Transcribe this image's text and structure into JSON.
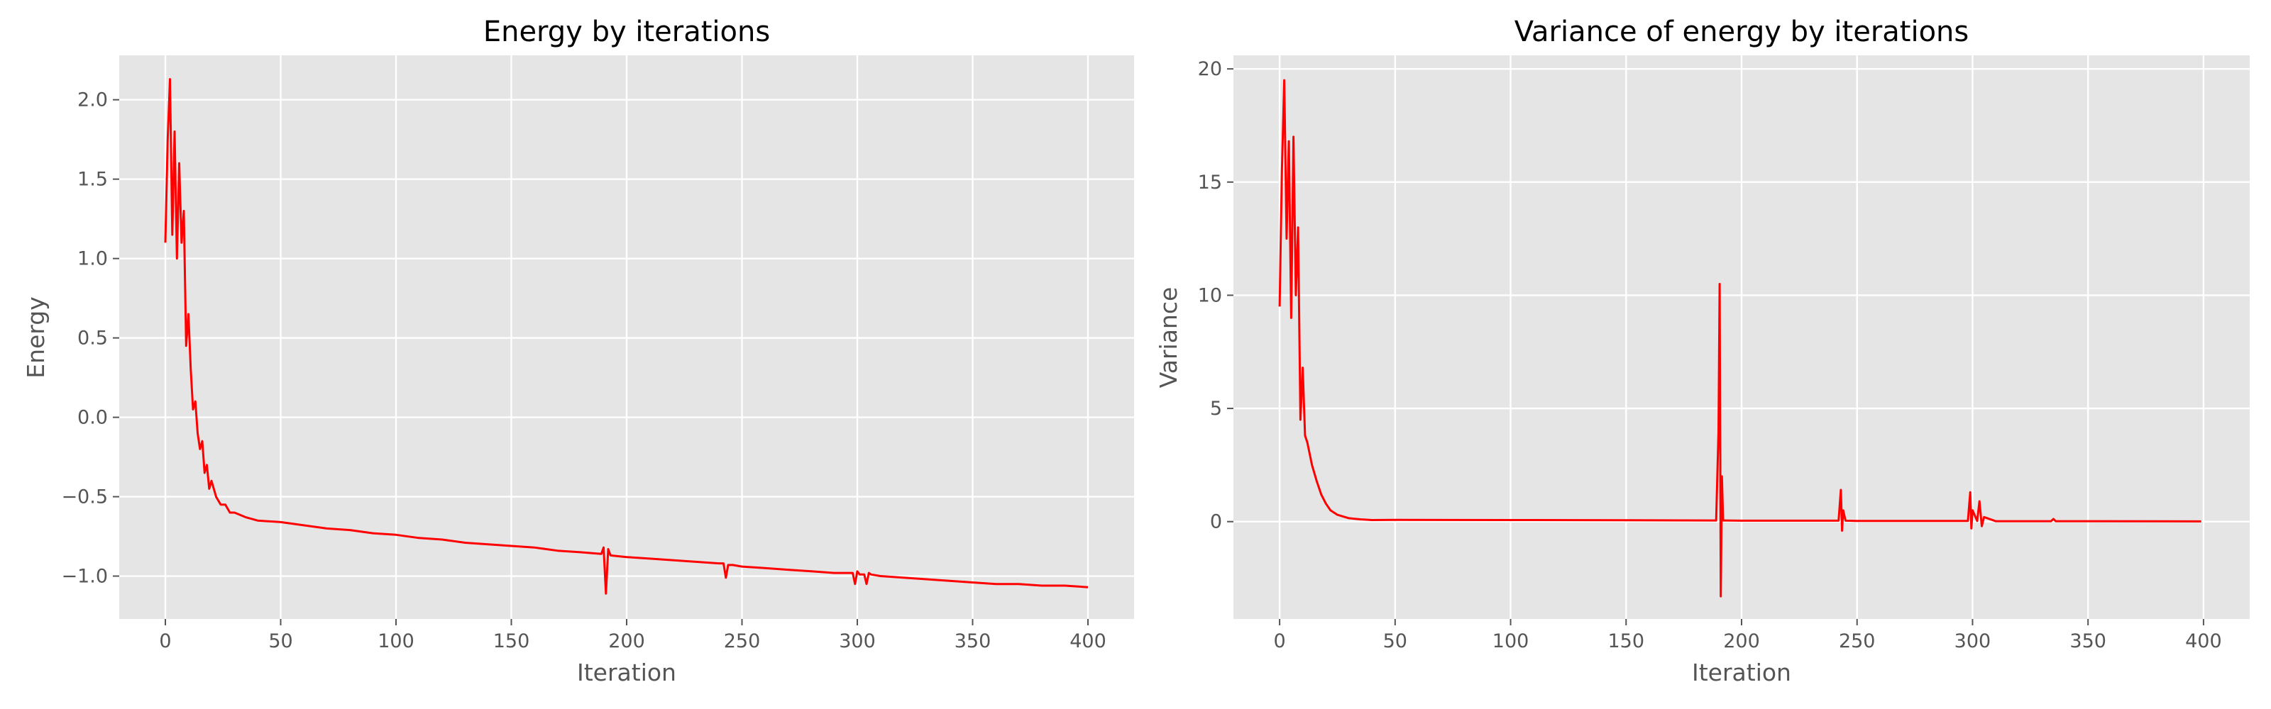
{
  "style": {
    "background": "#ffffff",
    "plot_background": "#e5e5e5",
    "grid_color": "#ffffff",
    "line_color": "#ff0000",
    "text_color": "#555555",
    "title_color": "#000000"
  },
  "chart_data": [
    {
      "type": "line",
      "title": "Energy by iterations",
      "xlabel": "Iteration",
      "ylabel": "Energy",
      "xlim": [
        -20,
        420
      ],
      "ylim": [
        -1.27,
        2.28
      ],
      "grid": true,
      "legend": "none",
      "xticks": [
        0,
        50,
        100,
        150,
        200,
        250,
        300,
        350,
        400
      ],
      "xtick_labels": [
        "0",
        "50",
        "100",
        "150",
        "200",
        "250",
        "300",
        "350",
        "400"
      ],
      "yticks": [
        -1.0,
        -0.5,
        0.0,
        0.5,
        1.0,
        1.5,
        2.0
      ],
      "ytick_labels": [
        "−1.0",
        "−0.5",
        "0.0",
        "0.5",
        "1.0",
        "1.5",
        "2.0"
      ],
      "series": [
        {
          "x": [
            0,
            1,
            2,
            3,
            4,
            5,
            6,
            7,
            8,
            9,
            10,
            11,
            12,
            13,
            14,
            15,
            16,
            17,
            18,
            19,
            20,
            22,
            24,
            26,
            28,
            30,
            35,
            40,
            50,
            60,
            70,
            80,
            90,
            100,
            110,
            120,
            130,
            140,
            150,
            160,
            170,
            180,
            189,
            190,
            191,
            192,
            193,
            200,
            210,
            220,
            230,
            240,
            242,
            243,
            244,
            246,
            250,
            260,
            270,
            280,
            290,
            298,
            299,
            300,
            301,
            302,
            303,
            304,
            305,
            306,
            310,
            320,
            330,
            340,
            350,
            360,
            370,
            380,
            390,
            400
          ],
          "y": [
            1.1,
            1.75,
            2.13,
            1.15,
            1.8,
            1.0,
            1.6,
            1.1,
            1.3,
            0.45,
            0.65,
            0.3,
            0.05,
            0.1,
            -0.1,
            -0.2,
            -0.15,
            -0.35,
            -0.3,
            -0.45,
            -0.4,
            -0.5,
            -0.55,
            -0.55,
            -0.6,
            -0.6,
            -0.63,
            -0.65,
            -0.66,
            -0.68,
            -0.7,
            -0.71,
            -0.73,
            -0.74,
            -0.76,
            -0.77,
            -0.79,
            -0.8,
            -0.81,
            -0.82,
            -0.84,
            -0.85,
            -0.86,
            -0.82,
            -1.11,
            -0.83,
            -0.87,
            -0.88,
            -0.89,
            -0.9,
            -0.91,
            -0.92,
            -0.92,
            -1.01,
            -0.93,
            -0.93,
            -0.94,
            -0.95,
            -0.96,
            -0.97,
            -0.98,
            -0.98,
            -1.05,
            -0.97,
            -0.99,
            -0.99,
            -0.99,
            -1.05,
            -0.98,
            -0.99,
            -1.0,
            -1.01,
            -1.02,
            -1.03,
            -1.04,
            -1.05,
            -1.05,
            -1.06,
            -1.06,
            -1.07
          ]
        }
      ]
    },
    {
      "type": "line",
      "title": "Variance of energy by iterations",
      "xlabel": "Iteration",
      "ylabel": "Variance",
      "xlim": [
        -20,
        420
      ],
      "ylim": [
        -4.3,
        20.6
      ],
      "grid": true,
      "legend": "none",
      "xticks": [
        0,
        50,
        100,
        150,
        200,
        250,
        300,
        350,
        400
      ],
      "xtick_labels": [
        "0",
        "50",
        "100",
        "150",
        "200",
        "250",
        "300",
        "350",
        "400"
      ],
      "yticks": [
        0,
        5,
        10,
        15,
        20
      ],
      "ytick_labels": [
        "0",
        "5",
        "10",
        "15",
        "20"
      ],
      "series": [
        {
          "x": [
            0,
            1,
            2,
            3,
            4,
            5,
            6,
            7,
            8,
            9,
            10,
            11,
            12,
            14,
            16,
            18,
            20,
            22,
            25,
            30,
            35,
            40,
            50,
            100,
            150,
            189,
            190,
            190.5,
            191,
            191.5,
            192,
            193,
            200,
            242,
            243,
            243.5,
            244,
            245,
            250,
            298,
            299,
            299.5,
            300,
            302,
            303,
            304,
            305,
            310,
            334,
            335,
            336,
            350,
            399
          ],
          "y": [
            9.5,
            15.5,
            19.5,
            12.5,
            16.8,
            9.0,
            17.0,
            10.0,
            13.0,
            4.5,
            6.8,
            3.8,
            3.5,
            2.5,
            1.8,
            1.2,
            0.8,
            0.5,
            0.3,
            0.15,
            0.1,
            0.07,
            0.08,
            0.07,
            0.06,
            0.05,
            4.0,
            10.5,
            -3.3,
            2.0,
            0.05,
            0.05,
            0.04,
            0.04,
            1.4,
            -0.4,
            0.5,
            0.04,
            0.03,
            0.03,
            1.3,
            -0.3,
            0.5,
            0.03,
            0.9,
            -0.2,
            0.2,
            0.02,
            0.02,
            0.12,
            0.02,
            0.02,
            0.01
          ]
        }
      ]
    }
  ]
}
